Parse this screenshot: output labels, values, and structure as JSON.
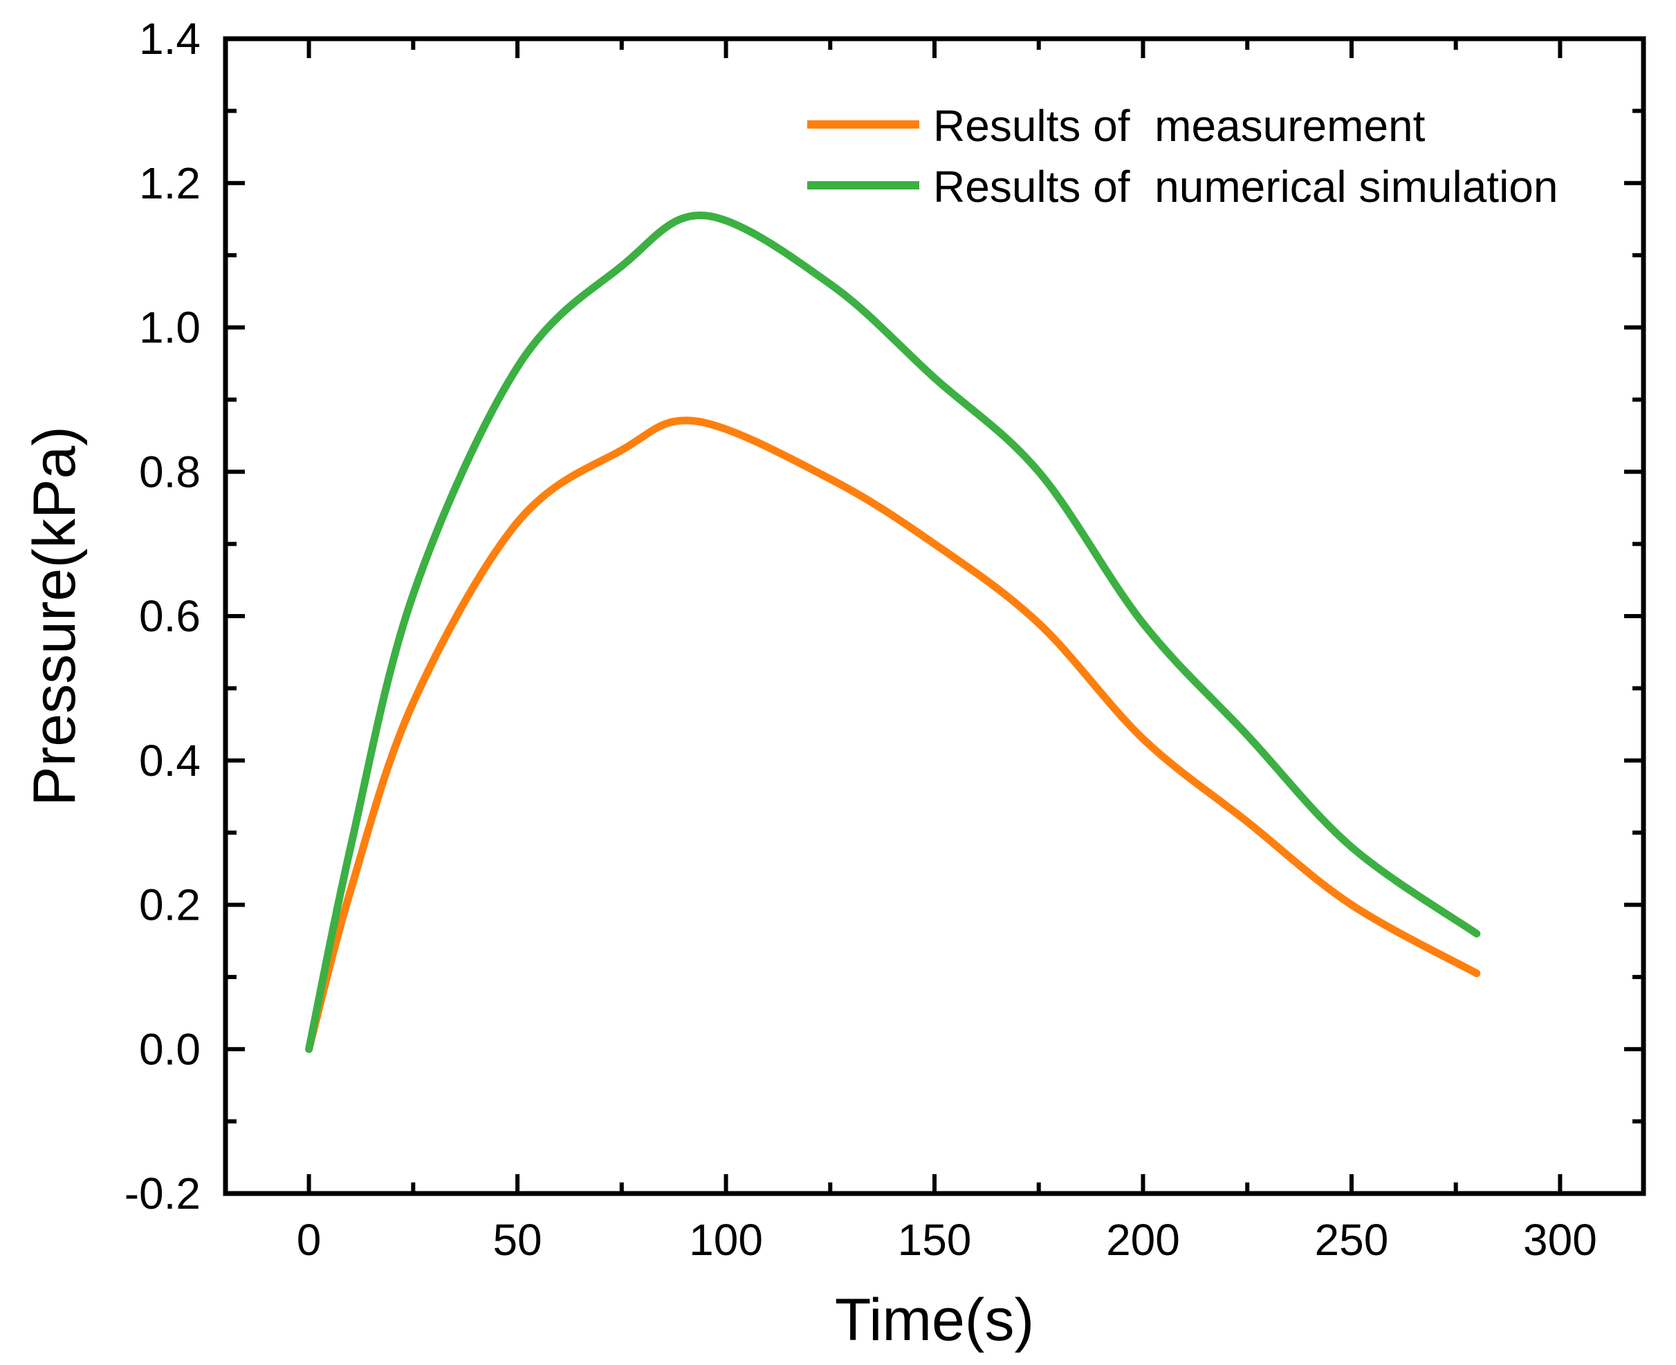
{
  "chart_data": {
    "type": "line",
    "title": "",
    "xlabel": "Time(s)",
    "ylabel": "Pressure(kPa)",
    "xlim": [
      -20,
      320
    ],
    "ylim": [
      -0.2,
      1.4
    ],
    "xticks": [
      0,
      50,
      100,
      150,
      200,
      250,
      300
    ],
    "xtick_labels": [
      "0",
      "50",
      "100",
      "150",
      "200",
      "250",
      "300"
    ],
    "yticks": [
      -0.2,
      0.0,
      0.2,
      0.4,
      0.6,
      0.8,
      1.0,
      1.2,
      1.4
    ],
    "ytick_labels": [
      "-0.2",
      "0.0",
      "0.2",
      "0.4",
      "0.6",
      "0.8",
      "1.0",
      "1.2",
      "1.4"
    ],
    "grid": false,
    "legend_position": "top-right",
    "series": [
      {
        "name": "Results of  measurement",
        "color": "#FF7F0E",
        "x": [
          0,
          10,
          25,
          50,
          75,
          93,
          125,
          150,
          175,
          200,
          225,
          250,
          280
        ],
        "y": [
          0,
          0.22,
          0.48,
          0.73,
          0.83,
          0.87,
          0.79,
          0.7,
          0.59,
          0.43,
          0.315,
          0.2,
          0.105
        ]
      },
      {
        "name": "Results of  numerical simulation",
        "color": "#3CB043",
        "x": [
          0,
          10,
          25,
          50,
          75,
          95,
          125,
          150,
          175,
          200,
          225,
          250,
          280
        ],
        "y": [
          0,
          0.28,
          0.63,
          0.945,
          1.085,
          1.155,
          1.06,
          0.93,
          0.8,
          0.59,
          0.435,
          0.28,
          0.16
        ]
      }
    ]
  }
}
